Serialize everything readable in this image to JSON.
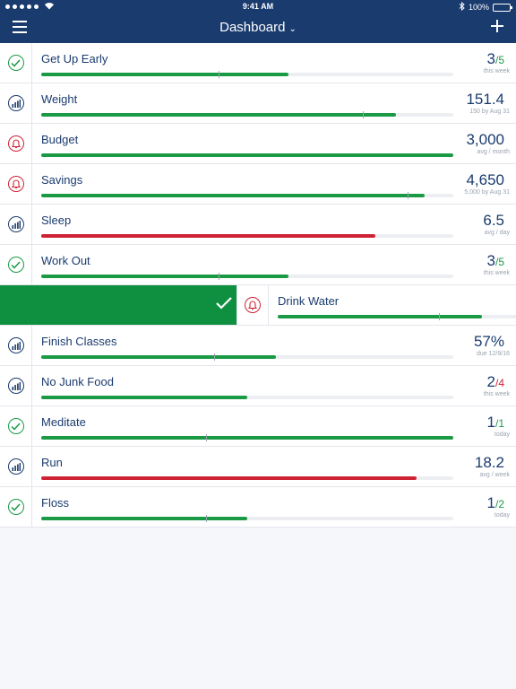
{
  "status": {
    "time": "9:41 AM",
    "battery": "100%"
  },
  "header": {
    "title": "Dashboard",
    "caret": "⌄"
  },
  "colors": {
    "header": "#1a3b6e",
    "green": "#1a9a45",
    "red": "#cf2335",
    "swipe": "#0f8f40"
  },
  "items": [
    {
      "name": "Get Up Early",
      "icon": "check-icon",
      "value": "3",
      "goal": "/5",
      "goal_color": "green",
      "sub": "this week",
      "progress": 0.6,
      "marker": 0.43,
      "bar_color": "green"
    },
    {
      "name": "Weight",
      "icon": "chart-icon",
      "value": "151.4",
      "goal": "",
      "goal_color": "",
      "sub": "150 by Aug 31",
      "progress": 0.86,
      "marker": 0.78,
      "bar_color": "green"
    },
    {
      "name": "Budget",
      "icon": "bell-icon",
      "value": "3,000",
      "goal": "",
      "goal_color": "",
      "sub": "avg / month",
      "progress": 1.0,
      "marker": null,
      "bar_color": "green"
    },
    {
      "name": "Savings",
      "icon": "bell-icon",
      "value": "4,650",
      "goal": "",
      "goal_color": "",
      "sub": "5,000 by Aug 31",
      "progress": 0.93,
      "marker": 0.89,
      "bar_color": "green"
    },
    {
      "name": "Sleep",
      "icon": "chart-icon",
      "value": "6.5",
      "goal": "",
      "goal_color": "",
      "sub": "avg / day",
      "progress": 0.81,
      "marker": null,
      "bar_color": "red"
    },
    {
      "name": "Work Out",
      "icon": "check-icon",
      "value": "3",
      "goal": "/5",
      "goal_color": "green",
      "sub": "this week",
      "progress": 0.6,
      "marker": 0.43,
      "bar_color": "green"
    },
    {
      "name": "Drink Water",
      "icon": "bell-icon",
      "value": "",
      "goal": "",
      "goal_color": "",
      "sub": "",
      "progress": 0.76,
      "marker": 0.6,
      "bar_color": "green",
      "swiped": true
    },
    {
      "name": "Finish Classes",
      "icon": "chart-icon",
      "value": "57%",
      "goal": "",
      "goal_color": "",
      "sub": "due 12/9/16",
      "progress": 0.57,
      "marker": 0.42,
      "bar_color": "green"
    },
    {
      "name": "No Junk Food",
      "icon": "chart-icon",
      "value": "2",
      "goal": "/4",
      "goal_color": "red",
      "sub": "this week",
      "progress": 0.5,
      "marker": null,
      "bar_color": "green"
    },
    {
      "name": "Meditate",
      "icon": "check-icon",
      "value": "1",
      "goal": "/1",
      "goal_color": "green",
      "sub": "today",
      "progress": 1.0,
      "marker": 0.4,
      "bar_color": "green"
    },
    {
      "name": "Run",
      "icon": "chart-icon",
      "value": "18.2",
      "goal": "",
      "goal_color": "",
      "sub": "avg / week",
      "progress": 0.91,
      "marker": null,
      "bar_color": "red"
    },
    {
      "name": "Floss",
      "icon": "check-icon",
      "value": "1",
      "goal": "/2",
      "goal_color": "green",
      "sub": "today",
      "progress": 0.5,
      "marker": 0.4,
      "bar_color": "green"
    }
  ]
}
